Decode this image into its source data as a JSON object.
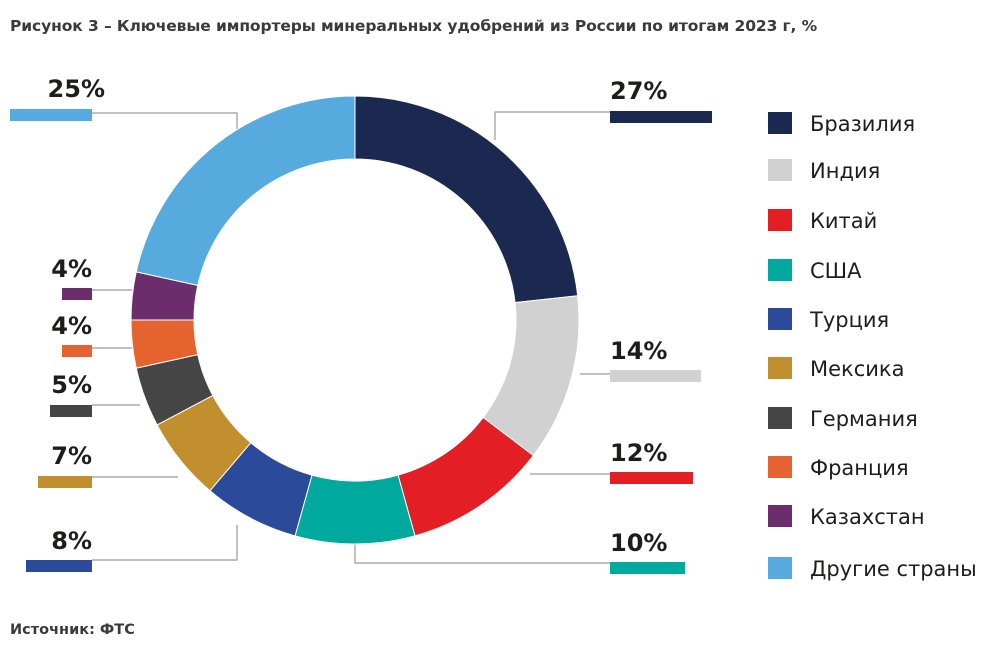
{
  "title": "Рисунок 3 – Ключевые импортеры минеральных удобрений из России по итогам 2023 г, %",
  "source": "Источник: ФТС",
  "chart_data": {
    "type": "pie",
    "variant": "donut",
    "title": "Рисунок 3 – Ключевые импортеры минеральных удобрений из России по итогам 2023 г, %",
    "unit": "%",
    "legend_position": "right",
    "categories": [
      "Бразилия",
      "Индия",
      "Китай",
      "США",
      "Турция",
      "Мексика",
      "Германия",
      "Франция",
      "Казахстан",
      "Другие страны"
    ],
    "values": [
      27,
      14,
      12,
      10,
      8,
      7,
      5,
      4,
      4,
      25
    ],
    "labels": [
      "27%",
      "14%",
      "12%",
      "10%",
      "8%",
      "7%",
      "5%",
      "4%",
      "4%",
      "25%"
    ],
    "colors": [
      "#1b2850",
      "#d1d1d1",
      "#e31e24",
      "#00a99d",
      "#2c4a9a",
      "#c18f2e",
      "#454545",
      "#e5632e",
      "#6b2d6b",
      "#56aade"
    ]
  }
}
